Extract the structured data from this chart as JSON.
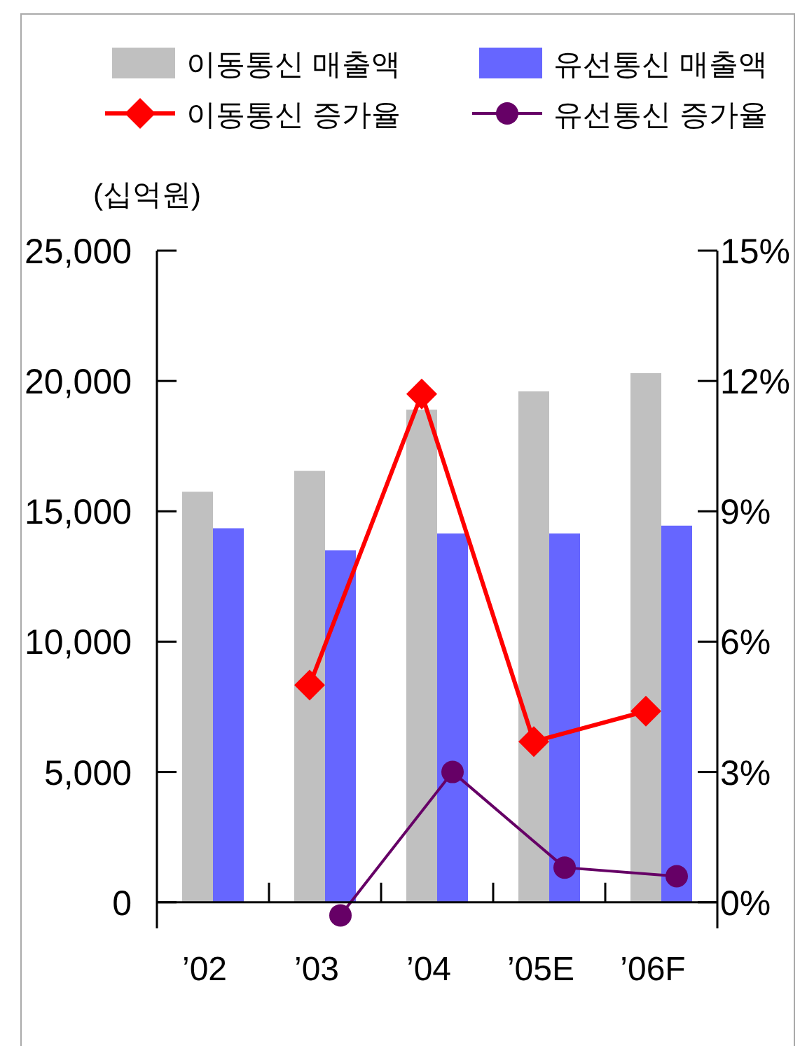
{
  "chart_data": {
    "type": "bar",
    "ylabel": "(십억원)",
    "categories": [
      "’02",
      "’03",
      "’04",
      "’05E",
      "’06F"
    ],
    "series": [
      {
        "name": "이동통신 매출액",
        "color": "#c0c0c0",
        "values": [
          15750,
          16550,
          18900,
          19600,
          20300
        ]
      },
      {
        "name": "유선통신 매출액",
        "color": "#6666ff",
        "values": [
          14350,
          13500,
          14150,
          14150,
          14450
        ]
      },
      {
        "name": "이동통신 증가율",
        "type": "line",
        "axis": "y2",
        "marker": "diamond",
        "color": "#ff0000",
        "values": [
          null,
          5.0,
          11.7,
          3.7,
          4.4
        ]
      },
      {
        "name": "유선통신 증가율",
        "type": "line",
        "axis": "y2",
        "marker": "circle",
        "color": "#660066",
        "values": [
          null,
          -0.3,
          3.0,
          0.8,
          0.6
        ]
      }
    ],
    "ylim": [
      -1000,
      25000
    ],
    "yticks": [
      0,
      {
        "value": 5000,
        "label": "5,000"
      },
      {
        "value": 10000,
        "label": "10,000"
      },
      {
        "value": 15000,
        "label": "15,000"
      },
      {
        "value": 20000,
        "label": "20,000"
      },
      {
        "value": 25000,
        "label": "25,000"
      }
    ],
    "y2lim": [
      -0.6,
      15
    ],
    "y2ticks": [
      {
        "value": 0,
        "label": "0%"
      },
      {
        "value": 3,
        "label": "3%"
      },
      {
        "value": 6,
        "label": "6%"
      },
      {
        "value": 9,
        "label": "9%"
      },
      {
        "value": 12,
        "label": "12%"
      },
      {
        "value": 15,
        "label": "15%"
      }
    ],
    "legend": "top",
    "grid": false
  }
}
